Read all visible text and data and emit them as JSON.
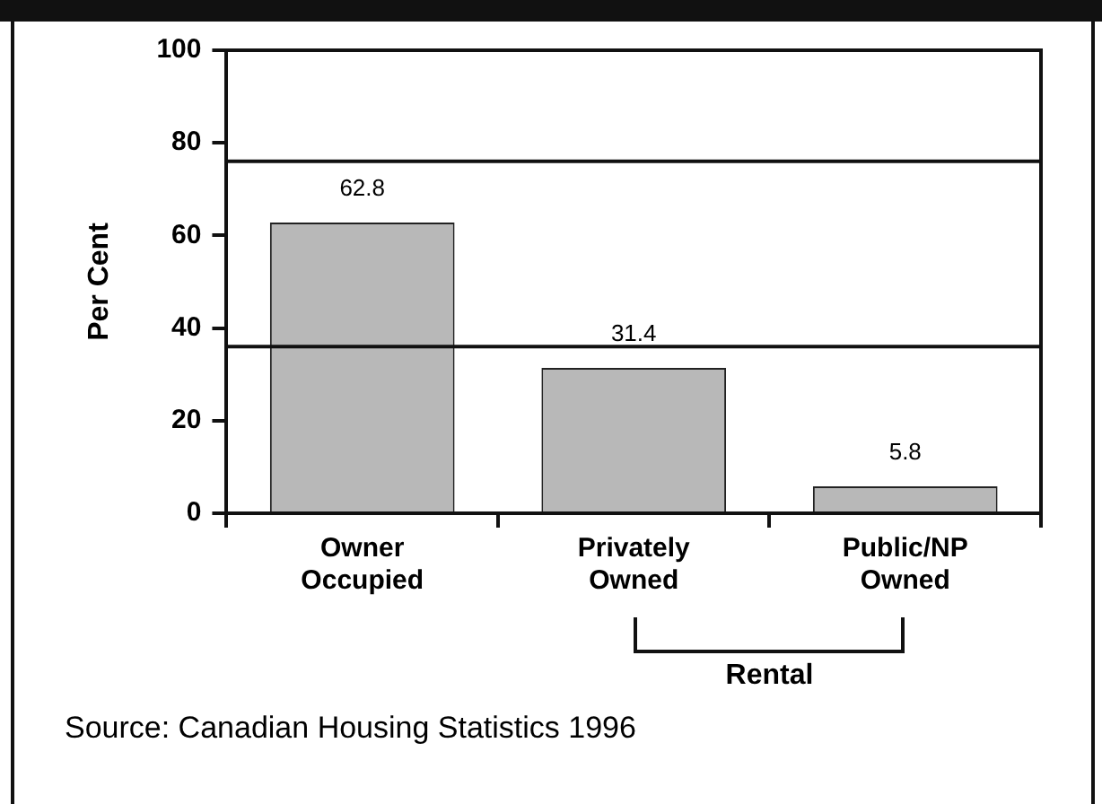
{
  "chart_data": {
    "type": "bar",
    "ylabel": "Per Cent",
    "categories": [
      "Owner Occupied",
      "Privately Owned",
      "Public/NP Owned"
    ],
    "values": [
      62.8,
      31.4,
      5.8
    ],
    "color": "#b8b8b8",
    "ylim": [
      0,
      100
    ],
    "yticks": [
      0,
      20,
      40,
      60,
      80,
      100
    ],
    "grid": false,
    "legend": false,
    "data_labels": true,
    "ref_lines": [
      {
        "axis": "y",
        "value": 76
      },
      {
        "axis": "y",
        "value": 36
      }
    ],
    "annotations": [
      "Rental",
      "Source: Canadian Housing Statistics 1996"
    ]
  }
}
